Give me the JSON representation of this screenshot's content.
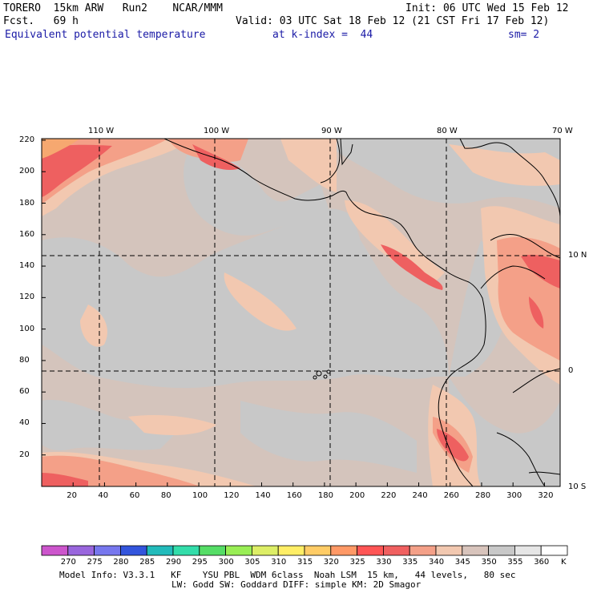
{
  "header": {
    "model": "TORERO  15km ARW   Run2    NCAR/MMM",
    "init": "Init: 06 UTC Wed 15 Feb 12",
    "fcst": "Fcst.   69 h",
    "valid": "Valid: 03 UTC Sat 18 Feb 12 (21 CST Fri 17 Feb 12)",
    "field": "Equivalent potential temperature",
    "level": "at k-index =  44",
    "smooth": "sm= 2"
  },
  "map": {
    "lon_labels": [
      "110 W",
      "100 W",
      "90 W",
      "80 W",
      "70 W"
    ],
    "lat_labels": [
      "10 N",
      "0",
      "10 S"
    ],
    "y_ticks": [
      "220",
      "200",
      "180",
      "160",
      "140",
      "120",
      "100",
      "80",
      "60",
      "40",
      "20"
    ],
    "x_ticks": [
      "20",
      "40",
      "60",
      "80",
      "100",
      "120",
      "140",
      "160",
      "180",
      "200",
      "220",
      "240",
      "260",
      "280",
      "300",
      "320"
    ]
  },
  "colorbar": {
    "labels": [
      "270",
      "275",
      "280",
      "285",
      "290",
      "295",
      "300",
      "305",
      "310",
      "315",
      "320",
      "325",
      "330",
      "335",
      "340",
      "345",
      "350",
      "355",
      "360"
    ],
    "unit": "K",
    "colors": [
      "#cc55cc",
      "#9966dd",
      "#7777ee",
      "#3355dd",
      "#22bbbb",
      "#33ddaa",
      "#55dd66",
      "#99ee55",
      "#ddee66",
      "#ffee66",
      "#ffcc66",
      "#ff9966",
      "#ff5555",
      "#f06060",
      "#f4a088",
      "#f2c8b0",
      "#d8c4bc",
      "#c8c8c8",
      "#e6e6e6",
      "#ffffff"
    ]
  },
  "footer": {
    "line1": "Model Info: V3.3.1   KF    YSU PBL  WDM 6class  Noah LSM  15 km,   44 levels,   80 sec",
    "line2": "LW: Godd SW: Goddard DIFF: simple KM: 2D Smagor"
  }
}
